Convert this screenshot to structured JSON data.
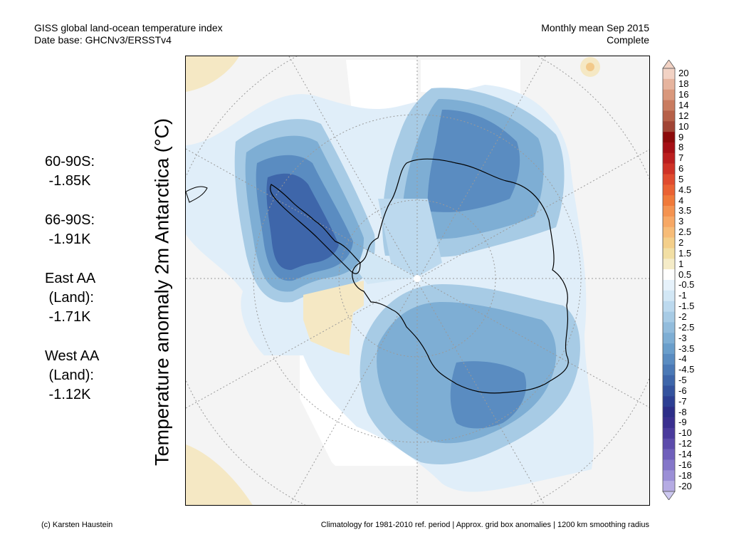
{
  "header": {
    "title_line1": "GISS global land-ocean temperature index",
    "title_line2": "Date base: GHCNv3/ERSSTv4",
    "period_line1": "Monthly mean Sep 2015",
    "period_line2": "Complete"
  },
  "y_axis_label": "Temperature anomaly 2m Antarctica (°C)",
  "stats": [
    {
      "label_lines": [
        "60-90S:"
      ],
      "value": "-1.85K"
    },
    {
      "label_lines": [
        "66-90S:"
      ],
      "value": "-1.91K"
    },
    {
      "label_lines": [
        "East AA",
        "(Land):"
      ],
      "value": "-1.71K"
    },
    {
      "label_lines": [
        "West AA",
        "(Land):"
      ],
      "value": "-1.12K"
    }
  ],
  "colorbar": {
    "labels": [
      "20",
      "18",
      "16",
      "14",
      "12",
      "10",
      "9",
      "8",
      "7",
      "6",
      "5",
      "4.5",
      "4",
      "3.5",
      "3",
      "2.5",
      "2",
      "1.5",
      "1",
      "0.5",
      "-0.5",
      "-1",
      "-1.5",
      "-2",
      "-2.5",
      "-3",
      "-3.5",
      "-4",
      "-4.5",
      "-5",
      "-6",
      "-7",
      "-8",
      "-9",
      "-10",
      "-12",
      "-14",
      "-16",
      "-18",
      "-20"
    ],
    "colors": [
      "#f2d2c4",
      "#e6b49e",
      "#d9987c",
      "#c97c60",
      "#b66048",
      "#a04434",
      "#8c0a0a",
      "#a50f15",
      "#bb1e1e",
      "#cf3226",
      "#e04b2e",
      "#ea6233",
      "#f07a3a",
      "#f49350",
      "#f7a865",
      "#f7bc78",
      "#f4cf8a",
      "#f2dfa4",
      "#f5ecc8",
      "#ffffff",
      "#e6f2fb",
      "#d2e7f5",
      "#bcd9ee",
      "#a7cbe5",
      "#92bcdc",
      "#7eaed4",
      "#6a9ecb",
      "#5a8cc1",
      "#4b79b6",
      "#3e66aa",
      "#34539e",
      "#2d3f93",
      "#2d2e88",
      "#3a2f8f",
      "#4a3a9c",
      "#5c4bab",
      "#6f5fbb",
      "#8476c9",
      "#9b8fd6",
      "#b5abe3"
    ],
    "top_arrow_color": "#f2d2c4",
    "bottom_arrow_color": "#cdc8f0"
  },
  "footer": {
    "left": "(c) Karsten Haustein",
    "right": "Climatology for 1981-2010 ref. period | Approx. grid box anomalies | 1200 km smoothing radius"
  }
}
